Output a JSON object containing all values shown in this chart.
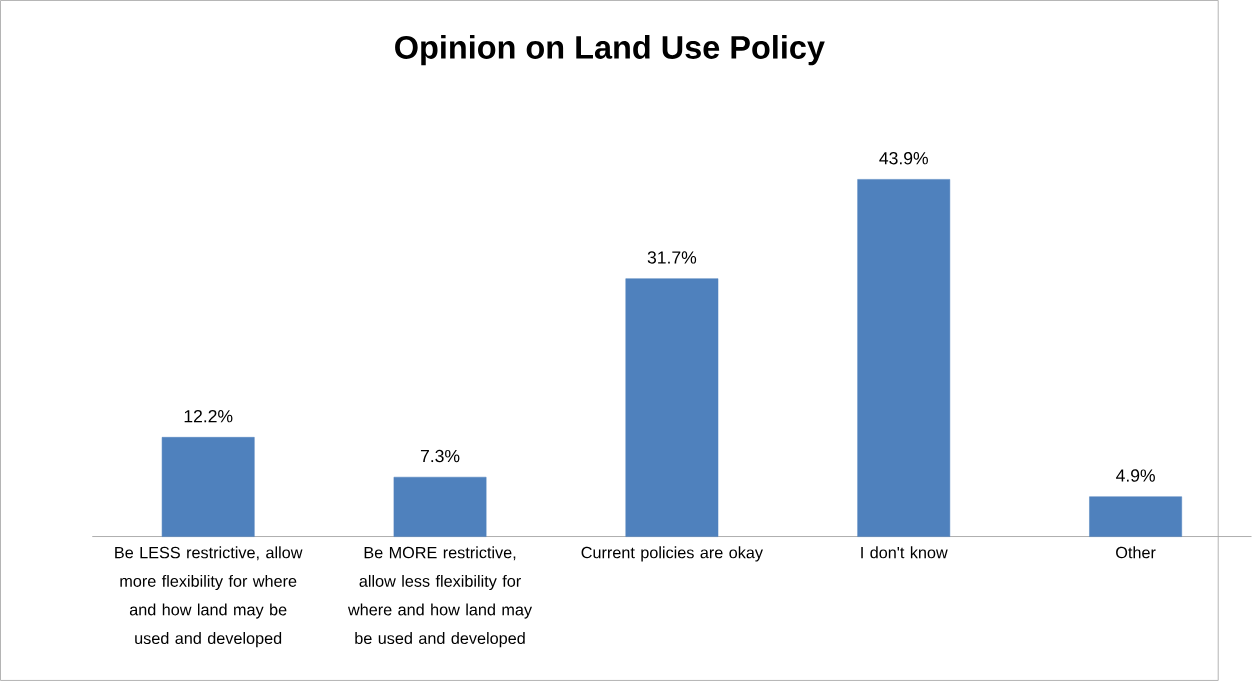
{
  "chart_data": {
    "type": "bar",
    "title": "Opinion on Land Use Policy",
    "categories": [
      "Be LESS restrictive, allow more flexibility for where and how land may be used and developed",
      "Be MORE restrictive, allow less flexibility for where and how land may be used and developed",
      "Current policies are okay",
      "I don't know",
      "Other"
    ],
    "values": [
      12.2,
      7.3,
      31.7,
      43.9,
      4.9
    ],
    "value_labels": [
      "12.2%",
      "7.3%",
      "31.7%",
      "43.9%",
      "4.9%"
    ],
    "color": "#4f81bd"
  }
}
